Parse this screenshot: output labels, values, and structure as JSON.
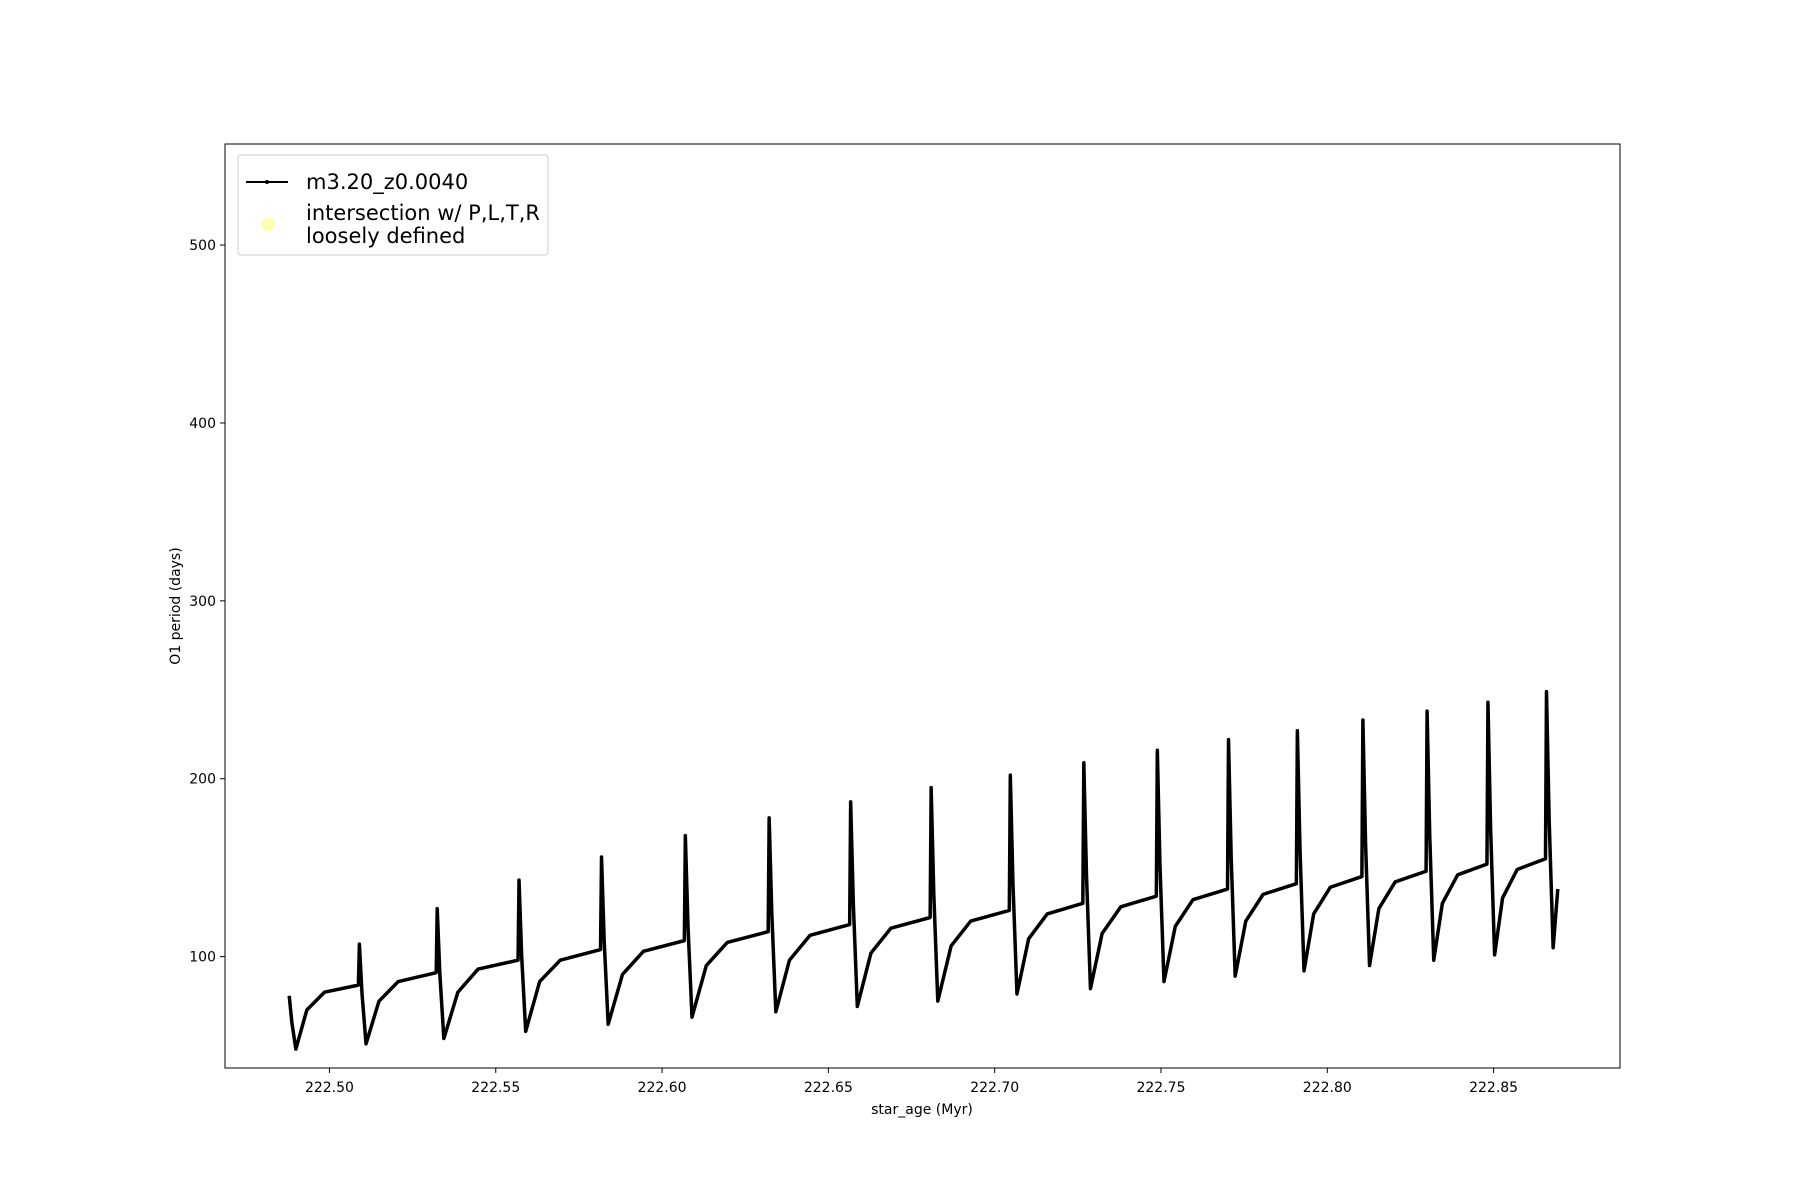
{
  "chart_data": {
    "type": "line",
    "xlabel": "star_age (Myr)",
    "ylabel": "O1 period (days)",
    "xlim": [
      222.4686,
      222.888
    ],
    "ylim": [
      37.4,
      556.8
    ],
    "xticks": [
      {
        "value": 222.5,
        "label": "222.50"
      },
      {
        "value": 222.55,
        "label": "222.55"
      },
      {
        "value": 222.6,
        "label": "222.60"
      },
      {
        "value": 222.65,
        "label": "222.65"
      },
      {
        "value": 222.7,
        "label": "222.70"
      },
      {
        "value": 222.75,
        "label": "222.75"
      },
      {
        "value": 222.8,
        "label": "222.80"
      },
      {
        "value": 222.85,
        "label": "222.85"
      }
    ],
    "yticks": [
      100,
      200,
      300,
      400,
      500
    ],
    "legend": "upper left",
    "series": [
      {
        "name": "m3.20_z0.0040",
        "color": "#000000",
        "x": [
          222.4879,
          222.4887,
          222.4899,
          222.4932,
          222.4985,
          222.5087,
          222.509,
          222.5098,
          222.511,
          222.5149,
          222.5207,
          222.5321,
          222.5324,
          222.5332,
          222.5344,
          222.5386,
          222.5447,
          222.5567,
          222.557,
          222.5578,
          222.559,
          222.5632,
          222.5694,
          222.5815,
          222.5818,
          222.5826,
          222.5838,
          222.5881,
          222.5944,
          222.6067,
          222.607,
          222.6078,
          222.609,
          222.6133,
          222.6196,
          222.6319,
          222.6322,
          222.633,
          222.6342,
          222.6383,
          222.6445,
          222.6564,
          222.6567,
          222.6575,
          222.6587,
          222.6628,
          222.6688,
          222.6806,
          222.6809,
          222.6817,
          222.6829,
          222.6869,
          222.6928,
          222.7044,
          222.7047,
          222.7055,
          222.7067,
          222.7102,
          222.7158,
          222.7265,
          222.7268,
          222.7276,
          222.7288,
          222.7323,
          222.7379,
          222.7486,
          222.7489,
          222.7497,
          222.7509,
          222.7543,
          222.7596,
          222.77,
          222.7703,
          222.7711,
          222.7723,
          222.7755,
          222.7807,
          222.7907,
          222.791,
          222.7918,
          222.793,
          222.7959,
          222.8009,
          222.8104,
          222.8107,
          222.8115,
          222.8127,
          222.8155,
          222.8204,
          222.8297,
          222.83,
          222.8308,
          222.832,
          222.8346,
          222.8392,
          222.848,
          222.8483,
          222.8491,
          222.8503,
          222.8527,
          222.8571,
          222.8656,
          222.8659,
          222.8667,
          222.8679,
          222.8693
        ],
        "values": [
          78,
          63,
          48,
          70,
          80,
          84,
          107,
          79,
          51,
          75,
          86,
          91,
          127,
          90,
          54,
          80,
          93,
          98,
          143,
          100,
          58,
          86,
          98,
          104,
          156,
          109,
          62,
          90,
          103,
          109,
          168,
          117,
          66,
          95,
          108,
          114,
          178,
          124,
          69,
          98,
          112,
          118,
          187,
          130,
          72,
          102,
          116,
          122,
          195,
          135,
          75,
          106,
          120,
          126,
          202,
          141,
          79,
          110,
          124,
          130,
          209,
          146,
          82,
          113,
          128,
          134,
          216,
          151,
          86,
          117,
          132,
          138,
          222,
          156,
          89,
          120,
          135,
          141,
          227,
          160,
          92,
          124,
          139,
          145,
          233,
          164,
          95,
          127,
          142,
          148,
          238,
          168,
          98,
          130,
          146,
          152,
          243,
          172,
          101,
          133,
          149,
          155,
          249,
          177,
          105,
          138
        ]
      },
      {
        "name": "intersection w/ P,L,T,R\nloosely defined",
        "color": "#ffffb3",
        "marker": "circle",
        "x": [],
        "values": []
      }
    ]
  }
}
